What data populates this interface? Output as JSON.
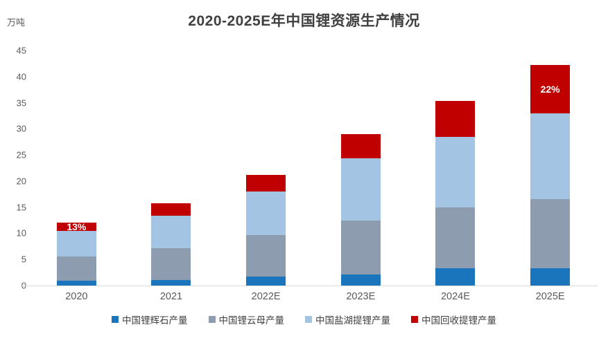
{
  "title": "2020-2025E年中国锂资源生产情况",
  "unit_label": "万吨",
  "colors": {
    "spodumene_blue": "#1b75bc",
    "lepidolite_gray": "#8d9cae",
    "saltlake_lightblue": "#a3c4e2",
    "recycled_red": "#c00000",
    "title_text": "#404040",
    "axis_text": "#595959",
    "baseline": "#d9d9d9",
    "annotation_text": "#ffffff"
  },
  "chart_data": {
    "type": "bar",
    "stacked": true,
    "title": "2020-2025E年中国锂资源生产情况",
    "ylabel": "万吨",
    "ylim": [
      0,
      45
    ],
    "yticks": [
      0,
      5,
      10,
      15,
      20,
      25,
      30,
      35,
      40,
      45
    ],
    "grid": false,
    "legend_position": "bottom",
    "categories": [
      "2020",
      "2021",
      "2022E",
      "2023E",
      "2024E",
      "2025E"
    ],
    "series": [
      {
        "name": "中国锂辉石产量",
        "color": "#1b75bc",
        "values": [
          0.9,
          1.1,
          1.7,
          2.1,
          3.3,
          3.3
        ]
      },
      {
        "name": "中国锂云母产量",
        "color": "#8d9cae",
        "values": [
          4.6,
          6.0,
          8.0,
          10.3,
          11.6,
          13.2
        ]
      },
      {
        "name": "中国盐湖提锂产量",
        "color": "#a3c4e2",
        "values": [
          4.9,
          6.3,
          8.3,
          12.0,
          13.5,
          16.4
        ]
      },
      {
        "name": "中国回收提锂产量",
        "color": "#c00000",
        "values": [
          1.6,
          2.4,
          3.2,
          4.6,
          7.0,
          9.3
        ]
      }
    ],
    "totals": [
      12.0,
      15.8,
      21.2,
      29.0,
      35.4,
      42.2
    ],
    "annotations": [
      {
        "category": "2020",
        "series": "中国回收提锂产量",
        "text": "13%"
      },
      {
        "category": "2025E",
        "series": "中国回收提锂产量",
        "text": "22%"
      }
    ]
  }
}
